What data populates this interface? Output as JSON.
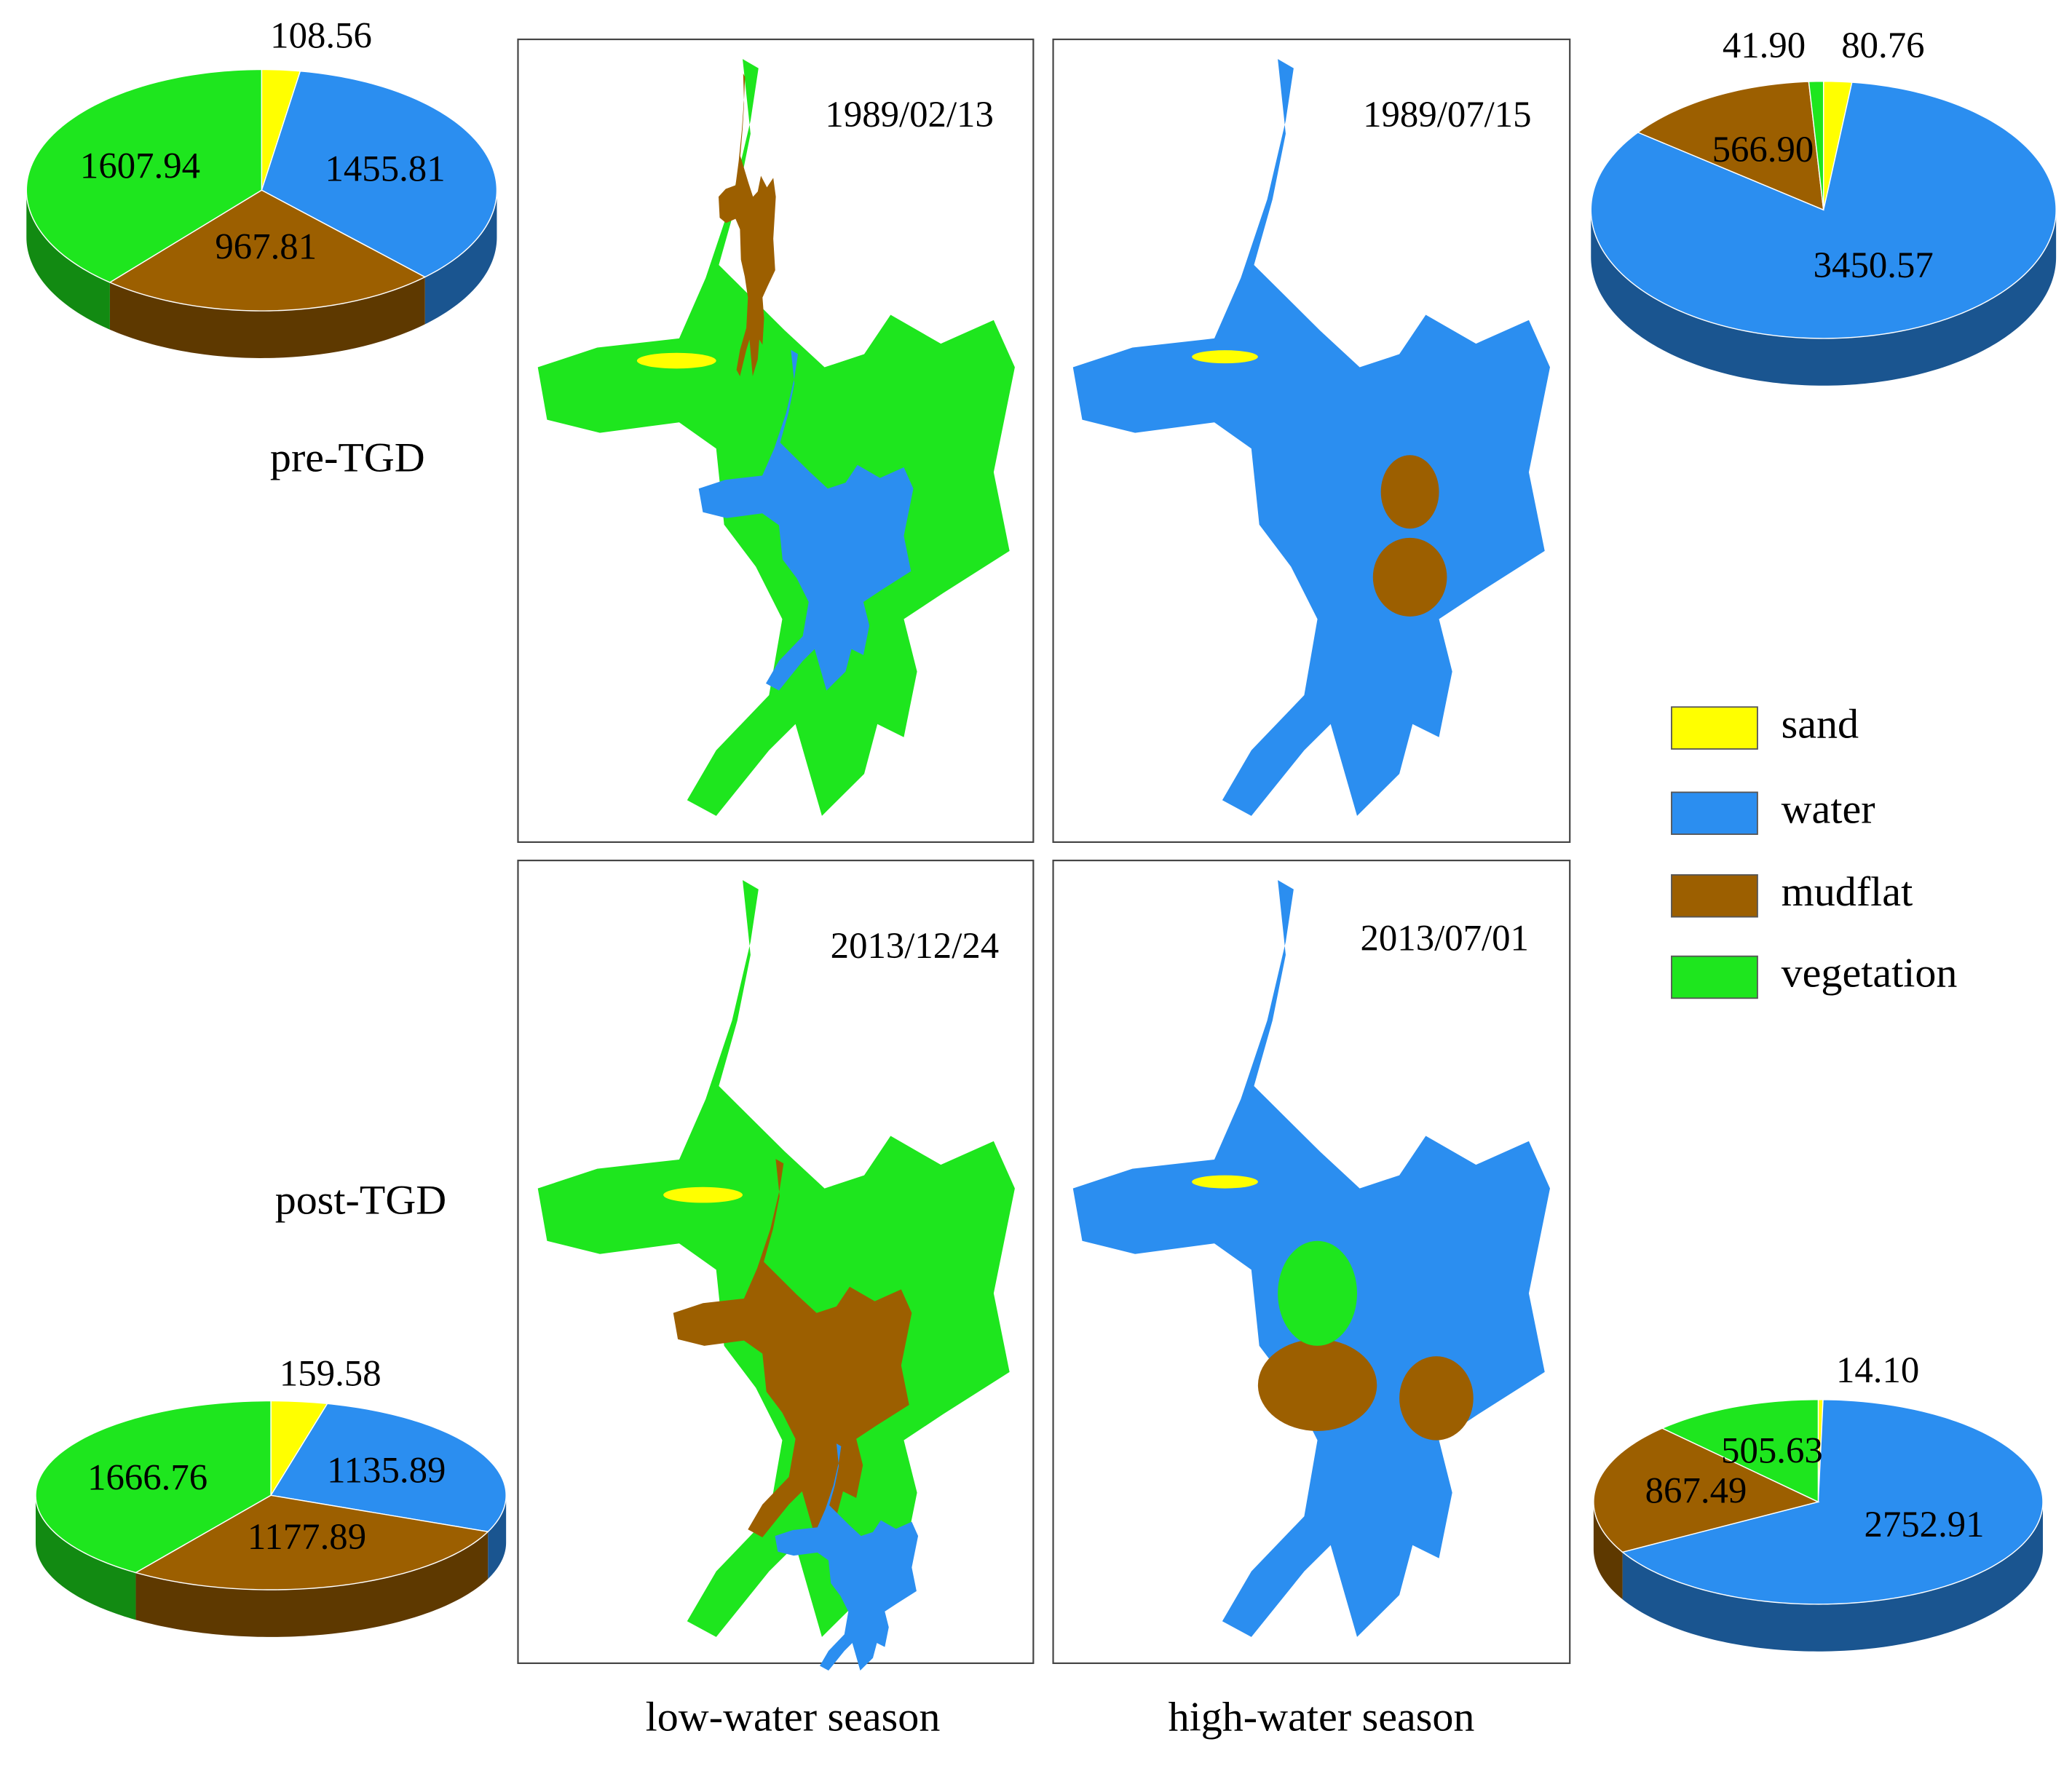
{
  "chart_data": [
    {
      "type": "pie",
      "date": "1989/02/13",
      "values": [
        108.56,
        1455.81,
        967.81,
        1607.94
      ],
      "value_labels": [
        "108.56",
        "1455.81",
        "967.81",
        "1607.94"
      ]
    },
    {
      "type": "pie",
      "date": "1989/07/15",
      "values": [
        80.76,
        3450.57,
        566.9,
        41.9
      ],
      "value_labels": [
        "80.76",
        "3450.57",
        "566.90",
        "41.90"
      ]
    },
    {
      "type": "pie",
      "date": "2013/12/24",
      "values": [
        159.58,
        1135.89,
        1177.89,
        1666.76
      ],
      "value_labels": [
        "159.58",
        "1135.89",
        "1177.89",
        "1666.76"
      ]
    },
    {
      "type": "pie",
      "date": "2013/07/01",
      "values": [
        14.1,
        2752.91,
        867.49,
        505.63
      ],
      "value_labels": [
        "14.10",
        "2752.91",
        "867.49",
        "505.63"
      ]
    }
  ],
  "legend": {
    "labels": [
      "sand",
      "water",
      "mudflat",
      "vegetation"
    ],
    "colors": [
      "#ffff00",
      "#2b8ef0",
      "#9c5f00",
      "#1ee61e"
    ]
  },
  "row_labels": [
    "pre-TGD",
    "post-TGD"
  ],
  "column_labels": [
    "low-water season",
    "high-water season"
  ]
}
